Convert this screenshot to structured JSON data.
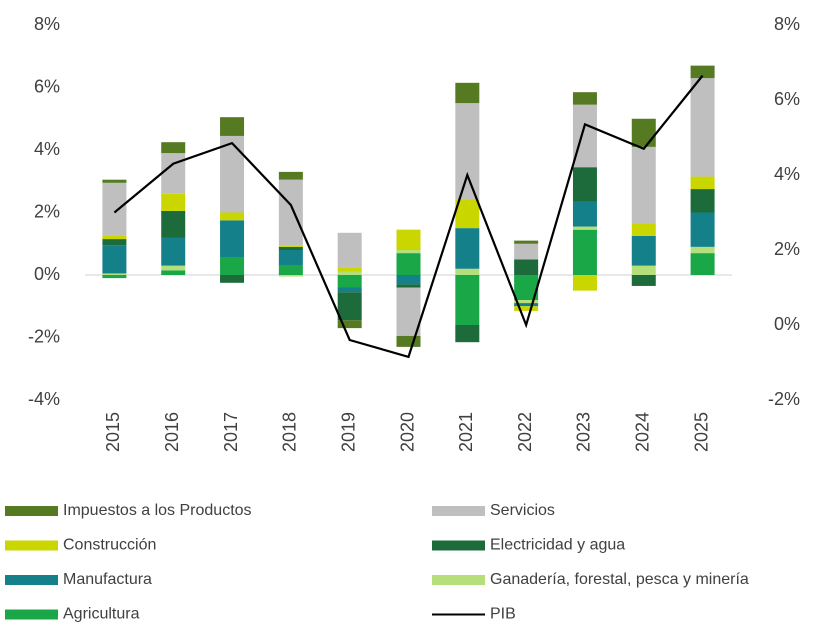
{
  "chart_data": {
    "type": "stacked_bar_line",
    "categories": [
      "2015",
      "2016",
      "2017",
      "2018",
      "2019",
      "2020",
      "2021",
      "2022",
      "2023",
      "2024",
      "2025"
    ],
    "series": [
      {
        "name": "Agricultura",
        "color": "#1aa748",
        "values": [
          -0.1,
          0.15,
          0.55,
          0.3,
          -0.4,
          0.7,
          -1.6,
          -0.8,
          1.45,
          0,
          0.7
        ]
      },
      {
        "name": "Ganadería, forestal, pesca y minería",
        "color": "#b5df7a",
        "values": [
          0.05,
          0.15,
          0,
          -0.05,
          0.1,
          0.1,
          0.2,
          -0.1,
          0.1,
          0.3,
          0.2
        ]
      },
      {
        "name": "Manufactura",
        "color": "#13808a",
        "values": [
          0.9,
          0.9,
          1.2,
          0.5,
          -0.15,
          -0.3,
          1.3,
          -0.1,
          0.8,
          0.95,
          1.1
        ]
      },
      {
        "name": "Electricidad y agua",
        "color": "#1d6b3b",
        "values": [
          0.2,
          0.85,
          -0.25,
          0.1,
          -0.9,
          -0.1,
          -0.55,
          0.5,
          1.1,
          -0.35,
          0.75
        ]
      },
      {
        "name": "Construcción",
        "color": "#c9d600",
        "values": [
          0.1,
          0.55,
          0.25,
          0.05,
          0.15,
          0.65,
          0.9,
          -0.15,
          -0.5,
          0.4,
          0.4
        ]
      },
      {
        "name": "Servicios",
        "color": "#bfbfbf",
        "values": [
          1.7,
          1.3,
          2.45,
          2.1,
          1.1,
          -1.55,
          3.1,
          0.5,
          2.0,
          2.45,
          3.15
        ]
      },
      {
        "name": "Impuestos a los Productos",
        "color": "#557a22",
        "values": [
          0.1,
          0.35,
          0.6,
          0.25,
          -0.25,
          -0.35,
          0.65,
          0.1,
          0.4,
          0.9,
          0.4
        ]
      },
      {
        "name": "PIB",
        "color": "#000000",
        "axis": "y2",
        "values": [
          3.0,
          4.3,
          4.85,
          3.2,
          -0.4,
          -0.85,
          4.0,
          0,
          5.35,
          4.7,
          6.65
        ]
      }
    ],
    "legend_order": [
      "Impuestos a los Productos",
      "Servicios",
      "Construcción",
      "Electricidad y agua",
      "Manufactura",
      "Ganadería, forestal, pesca y minería",
      "Agricultura",
      "PIB"
    ],
    "ylim": [
      -4,
      8
    ],
    "yticks": [
      {
        "value": -4,
        "label": "-4%"
      },
      {
        "value": -2,
        "label": "-2%"
      },
      {
        "value": 0,
        "label": "0%"
      },
      {
        "value": 2,
        "label": "2%"
      },
      {
        "value": 4,
        "label": "4%"
      },
      {
        "value": 6,
        "label": "6%"
      },
      {
        "value": 8,
        "label": "8%"
      }
    ],
    "y2lim": [
      -2,
      8
    ],
    "y2ticks": [
      {
        "value": -2,
        "label": "-2%"
      },
      {
        "value": 0,
        "label": "0%"
      },
      {
        "value": 2,
        "label": "2%"
      },
      {
        "value": 4,
        "label": "4%"
      },
      {
        "value": 6,
        "label": "6%"
      },
      {
        "value": 8,
        "label": "8%"
      }
    ]
  }
}
